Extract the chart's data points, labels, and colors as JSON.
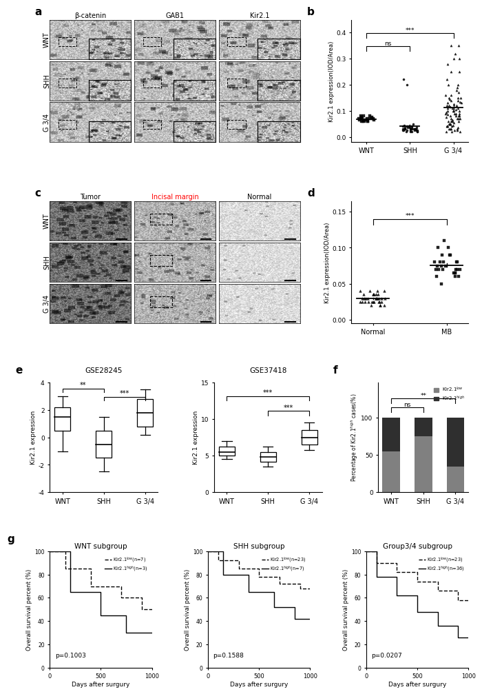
{
  "panel_labels": [
    "a",
    "b",
    "c",
    "d",
    "e",
    "f",
    "g"
  ],
  "panel_a": {
    "col_labels": [
      "β-catenin",
      "GAB1",
      "Kir2.1"
    ],
    "row_labels": [
      "WNT",
      "SHH",
      "G 3/4"
    ]
  },
  "panel_b": {
    "ylabel": "Kir2.1 expression(IOD/Area)",
    "groups": [
      "WNT",
      "SHH",
      "G 3/4"
    ],
    "ylim": [
      0,
      0.4
    ],
    "yticks": [
      0.0,
      0.1,
      0.2,
      0.3,
      0.4
    ],
    "WNT_data": [
      0.06,
      0.07,
      0.07,
      0.06,
      0.08,
      0.07,
      0.065,
      0.075,
      0.06,
      0.08,
      0.07,
      0.065,
      0.07,
      0.07,
      0.075,
      0.06,
      0.08,
      0.07,
      0.065,
      0.06
    ],
    "SHH_data": [
      0.02,
      0.03,
      0.025,
      0.035,
      0.04,
      0.025,
      0.03,
      0.02,
      0.03,
      0.025,
      0.035,
      0.03,
      0.04,
      0.02,
      0.025,
      0.03,
      0.2,
      0.22,
      0.05,
      0.04,
      0.045,
      0.035,
      0.03,
      0.025,
      0.02,
      0.03,
      0.04,
      0.03,
      0.025,
      0.035,
      0.02,
      0.03,
      0.025,
      0.03,
      0.04,
      0.035,
      0.025,
      0.03
    ],
    "G34_data": [
      0.02,
      0.03,
      0.04,
      0.05,
      0.06,
      0.07,
      0.08,
      0.09,
      0.1,
      0.11,
      0.12,
      0.13,
      0.14,
      0.15,
      0.16,
      0.17,
      0.18,
      0.19,
      0.2,
      0.22,
      0.25,
      0.28,
      0.3,
      0.32,
      0.35,
      0.04,
      0.05,
      0.06,
      0.07,
      0.08,
      0.09,
      0.1,
      0.11,
      0.12,
      0.03,
      0.025,
      0.035,
      0.045,
      0.055,
      0.065,
      0.075,
      0.085,
      0.095,
      0.105,
      0.115,
      0.125,
      0.135,
      0.145,
      0.02,
      0.025,
      0.03,
      0.04,
      0.05,
      0.06,
      0.07,
      0.08,
      0.09,
      0.1,
      0.15,
      0.2,
      0.25,
      0.3,
      0.35,
      0.02,
      0.03,
      0.04,
      0.05,
      0.06,
      0.07,
      0.08,
      0.09,
      0.1,
      0.11,
      0.12,
      0.13,
      0.14,
      0.15,
      0.16
    ]
  },
  "panel_c": {
    "col_labels": [
      "Tumor",
      "Incisal margin",
      "Normal"
    ],
    "row_labels": [
      "WNT",
      "SHH",
      "G 3/4"
    ]
  },
  "panel_d": {
    "ylabel": "Kir2.1 expression(IOD/Area)",
    "groups": [
      "Normal",
      "MB"
    ],
    "yticks": [
      0.0,
      0.05,
      0.1,
      0.15
    ],
    "Normal_data": [
      0.02,
      0.025,
      0.03,
      0.025,
      0.035,
      0.03,
      0.025,
      0.02,
      0.03,
      0.025,
      0.035,
      0.03,
      0.04,
      0.025,
      0.03,
      0.035,
      0.025,
      0.03,
      0.04,
      0.03,
      0.025,
      0.035,
      0.04,
      0.03,
      0.025,
      0.02,
      0.03,
      0.035,
      0.04,
      0.03,
      0.025,
      0.035,
      0.02,
      0.025,
      0.03
    ],
    "MB_data": [
      0.05,
      0.06,
      0.07,
      0.08,
      0.09,
      0.1,
      0.06,
      0.07,
      0.08,
      0.07,
      0.065,
      0.075,
      0.08,
      0.09,
      0.1,
      0.11,
      0.07,
      0.065,
      0.075,
      0.08,
      0.06,
      0.07,
      0.075,
      0.065,
      0.08,
      0.09,
      0.07
    ]
  },
  "panel_e_gse28245": {
    "title": "GSE28245",
    "ylabel": "Kir2.1 expression",
    "groups": [
      "WNT",
      "SHH",
      "G 3/4"
    ],
    "ylim": [
      -4,
      4
    ],
    "yticks": [
      -4,
      -2,
      0,
      2,
      4
    ],
    "medians": [
      1.5,
      -0.5,
      1.8
    ],
    "q1": [
      0.5,
      -1.5,
      0.8
    ],
    "q3": [
      2.2,
      0.5,
      2.8
    ],
    "whislo": [
      -1.0,
      -2.5,
      0.2
    ],
    "whishi": [
      3.0,
      1.5,
      3.5
    ]
  },
  "panel_e_gse37418": {
    "title": "GSE37418",
    "ylabel": "Kir2.1 expression",
    "groups": [
      "WNT",
      "SHH",
      "G 3/4"
    ],
    "ylim": [
      0,
      15
    ],
    "yticks": [
      0,
      5,
      10,
      15
    ],
    "medians": [
      5.5,
      4.8,
      7.5
    ],
    "q1": [
      5.0,
      4.2,
      6.5
    ],
    "q3": [
      6.2,
      5.5,
      8.5
    ],
    "whislo": [
      4.5,
      3.5,
      5.8
    ],
    "whishi": [
      7.0,
      6.2,
      9.5
    ]
  },
  "panel_f": {
    "groups": [
      "WNT",
      "SHH",
      "G 3/4"
    ],
    "low_values": [
      55,
      75,
      35
    ],
    "high_values": [
      45,
      25,
      65
    ],
    "low_color": "#808080",
    "high_color": "#2f2f2f"
  },
  "panel_g_wnt": {
    "title": "WNT subgroup",
    "xlabel": "Days after surgury",
    "ylabel": "Overall survival percent (%)",
    "legend_low": "Kir2.1$^{low}$(n=7)",
    "legend_high": "Kir2.1$^{high}$(n=3)",
    "pvalue": "p=0.1003",
    "low_times": [
      0,
      150,
      150,
      400,
      400,
      700,
      700,
      900,
      900,
      1000
    ],
    "low_survival": [
      100,
      100,
      85,
      85,
      70,
      70,
      60,
      60,
      50,
      50
    ],
    "high_times": [
      0,
      200,
      200,
      500,
      500,
      750,
      750,
      1000
    ],
    "high_survival": [
      100,
      100,
      65,
      65,
      45,
      45,
      30,
      30
    ],
    "ylim": [
      0,
      100
    ],
    "xlim": [
      0,
      1000
    ]
  },
  "panel_g_shh": {
    "title": "SHH subgroup",
    "xlabel": "Days after surgury",
    "ylabel": "Overall survival percent (%)",
    "legend_low": "Kir2.1$^{low}$(n=23)",
    "legend_high": "Kir2.1$^{high}$(n=7)",
    "pvalue": "p=0.1588",
    "low_times": [
      0,
      100,
      100,
      300,
      300,
      500,
      500,
      700,
      700,
      900,
      900,
      1000
    ],
    "low_survival": [
      100,
      100,
      92,
      92,
      85,
      85,
      78,
      78,
      72,
      72,
      68,
      68
    ],
    "high_times": [
      0,
      150,
      150,
      400,
      400,
      650,
      650,
      850,
      850,
      1000
    ],
    "high_survival": [
      100,
      100,
      80,
      80,
      65,
      65,
      52,
      52,
      42,
      42
    ],
    "ylim": [
      0,
      100
    ],
    "xlim": [
      0,
      1000
    ]
  },
  "panel_g_grp34": {
    "title": "Group3/4 subgroup",
    "xlabel": "Days after surgury",
    "ylabel": "Overall survival percent (%)",
    "legend_low": "Kir2.1$^{low}$(n=23)",
    "legend_high": "Kir2.1$^{high}$(n=36)",
    "pvalue": "p=0.0207",
    "low_times": [
      0,
      100,
      100,
      300,
      300,
      500,
      500,
      700,
      700,
      900,
      900,
      1000
    ],
    "low_survival": [
      100,
      100,
      90,
      90,
      82,
      82,
      74,
      74,
      66,
      66,
      58,
      58
    ],
    "high_times": [
      0,
      100,
      100,
      300,
      300,
      500,
      500,
      700,
      700,
      900,
      900,
      1000
    ],
    "high_survival": [
      100,
      100,
      78,
      78,
      62,
      62,
      48,
      48,
      36,
      36,
      26,
      26
    ],
    "ylim": [
      0,
      100
    ],
    "xlim": [
      0,
      1000
    ]
  },
  "bg_color": "#ffffff"
}
